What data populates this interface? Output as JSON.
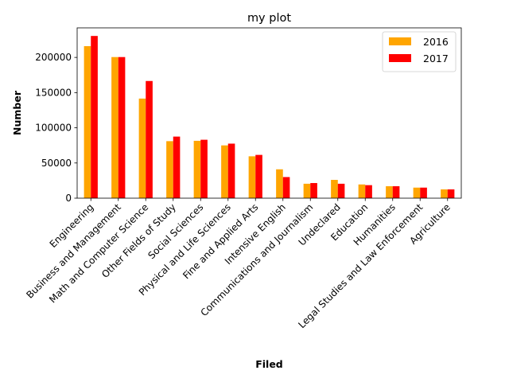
{
  "chart_data": {
    "type": "bar",
    "title": "my plot",
    "xlabel": "Filed",
    "ylabel": "Number",
    "ylim": [
      0,
      242000
    ],
    "yticks": [
      0,
      50000,
      100000,
      150000,
      200000
    ],
    "legend_position": "top-right",
    "grid": false,
    "categories": [
      "Engineering",
      "Business and Management",
      "Math and Computer Science",
      "Other Fields of Study",
      "Social Sciences",
      "Physical and Life Sciences",
      "Fine and Applied Arts",
      "Intensive English",
      "Communications and Journalism",
      "Undeclared",
      "Education",
      "Humanities",
      "Legal Studies and Law Enforcement",
      "Agriculture"
    ],
    "series": [
      {
        "name": "2016",
        "color": "#ffa500",
        "values": [
          216000,
          200500,
          141500,
          81000,
          81500,
          75000,
          59500,
          41000,
          20500,
          26000,
          19500,
          17000,
          15000,
          12500
        ]
      },
      {
        "name": "2017",
        "color": "#ff0000",
        "values": [
          230500,
          200500,
          166500,
          87500,
          83000,
          77500,
          61500,
          30000,
          21500,
          20500,
          18500,
          17000,
          15000,
          12500
        ]
      }
    ]
  }
}
